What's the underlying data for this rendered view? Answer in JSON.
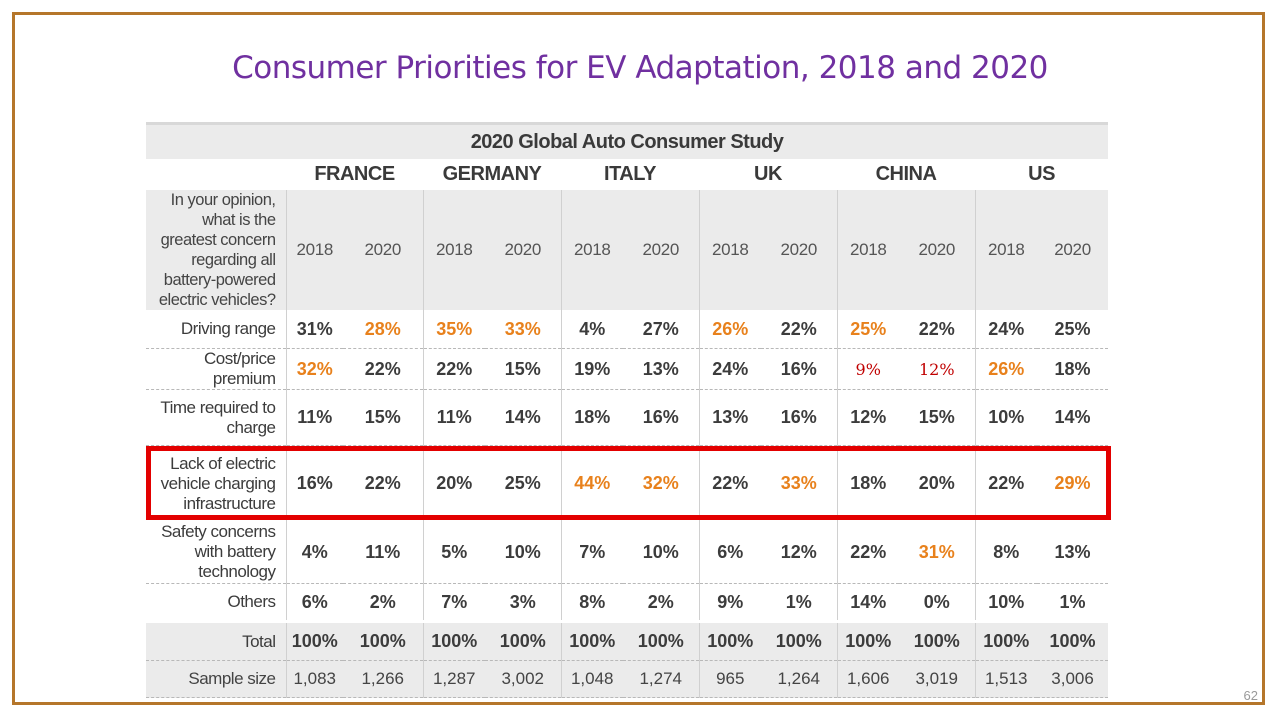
{
  "slide": {
    "title": "Consumer Priorities for EV Adaptation, 2018 and 2020",
    "page_number": "62"
  },
  "table": {
    "title": "2020 Global Auto Consumer Study",
    "countries": [
      "FRANCE",
      "GERMANY",
      "ITALY",
      "UK",
      "CHINA",
      "US"
    ],
    "question": "In your opinion, what is the greatest concern regarding all battery-powered electric vehicles?",
    "years": [
      "2018",
      "2020",
      "2018",
      "2020",
      "2018",
      "2020",
      "2018",
      "2020",
      "2018",
      "2020",
      "2018",
      "2020"
    ],
    "rows": {
      "driving_range": {
        "label": "Driving range",
        "values": [
          "31%",
          "28%",
          "35%",
          "33%",
          "4%",
          "27%",
          "26%",
          "22%",
          "25%",
          "22%",
          "24%",
          "25%"
        ]
      },
      "cost": {
        "label": "Cost/price premium",
        "values": [
          "32%",
          "22%",
          "22%",
          "15%",
          "19%",
          "13%",
          "24%",
          "16%",
          "9%",
          "12%",
          "26%",
          "18%"
        ]
      },
      "time": {
        "label": "Time required to charge",
        "values": [
          "11%",
          "15%",
          "11%",
          "14%",
          "18%",
          "16%",
          "13%",
          "16%",
          "12%",
          "15%",
          "10%",
          "14%"
        ]
      },
      "infrastructure": {
        "label": "Lack of electric vehicle charging infrastructure",
        "values": [
          "16%",
          "22%",
          "20%",
          "25%",
          "44%",
          "32%",
          "22%",
          "33%",
          "18%",
          "20%",
          "22%",
          "29%"
        ]
      },
      "safety": {
        "label": "Safety concerns with battery technology",
        "values": [
          "4%",
          "11%",
          "5%",
          "10%",
          "7%",
          "10%",
          "6%",
          "12%",
          "22%",
          "31%",
          "8%",
          "13%"
        ]
      },
      "others": {
        "label": "Others",
        "values": [
          "6%",
          "2%",
          "7%",
          "3%",
          "8%",
          "2%",
          "9%",
          "1%",
          "14%",
          "0%",
          "10%",
          "1%"
        ]
      },
      "total": {
        "label": "Total",
        "values": [
          "100%",
          "100%",
          "100%",
          "100%",
          "100%",
          "100%",
          "100%",
          "100%",
          "100%",
          "100%",
          "100%",
          "100%"
        ]
      },
      "sample": {
        "label": "Sample size",
        "values": [
          "1,083",
          "1,266",
          "1,287",
          "3,002",
          "1,048",
          "1,274",
          "965",
          "1,264",
          "1,606",
          "3,019",
          "1,513",
          "3,006"
        ]
      }
    }
  },
  "colors": {
    "title": "#7030a0",
    "highlight_value": "#e8811c",
    "annotation_red": "#c00000",
    "box_red": "#e30000",
    "frame": "#b5762a"
  }
}
